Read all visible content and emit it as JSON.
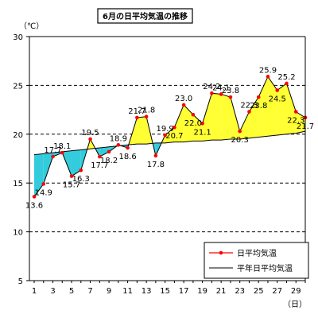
{
  "chart_data": {
    "type": "line",
    "title": "6月の日平均気温の推移",
    "ylabel": "（℃）",
    "xlabel": "（日）",
    "ylim": [
      5,
      30
    ],
    "xlim": [
      1,
      30
    ],
    "yticks": [
      5,
      10,
      15,
      20,
      25,
      30
    ],
    "xticks": [
      1,
      3,
      5,
      7,
      9,
      11,
      13,
      15,
      17,
      19,
      21,
      23,
      25,
      27,
      29
    ],
    "grid": "dashed horizontal",
    "legend_position": "bottom-right",
    "x": [
      1,
      2,
      3,
      4,
      5,
      6,
      7,
      8,
      9,
      10,
      11,
      12,
      13,
      14,
      15,
      16,
      17,
      18,
      19,
      20,
      21,
      22,
      23,
      24,
      25,
      26,
      27,
      28,
      29,
      30
    ],
    "series": [
      {
        "name": "日平均気温",
        "color": "#ff0000",
        "values": [
          13.6,
          14.9,
          17.7,
          18.1,
          15.7,
          16.3,
          19.5,
          17.7,
          18.2,
          18.9,
          18.6,
          21.7,
          21.8,
          17.8,
          19.9,
          20.7,
          23.0,
          22.0,
          21.1,
          24.2,
          24.1,
          23.8,
          20.3,
          22.3,
          23.8,
          25.9,
          24.5,
          25.2,
          22.3,
          21.7
        ]
      },
      {
        "name": "平年日平均気温",
        "color": "#000000",
        "values": [
          17.9,
          18.0,
          18.1,
          18.2,
          18.3,
          18.4,
          18.5,
          18.6,
          18.7,
          18.8,
          18.9,
          19.0,
          19.0,
          19.1,
          19.1,
          19.2,
          19.2,
          19.3,
          19.3,
          19.4,
          19.4,
          19.5,
          19.5,
          19.6,
          19.7,
          19.8,
          19.9,
          20.0,
          20.1,
          20.3
        ]
      }
    ],
    "fill_above_color": "#ffff33",
    "fill_below_color": "#33ccdd"
  }
}
